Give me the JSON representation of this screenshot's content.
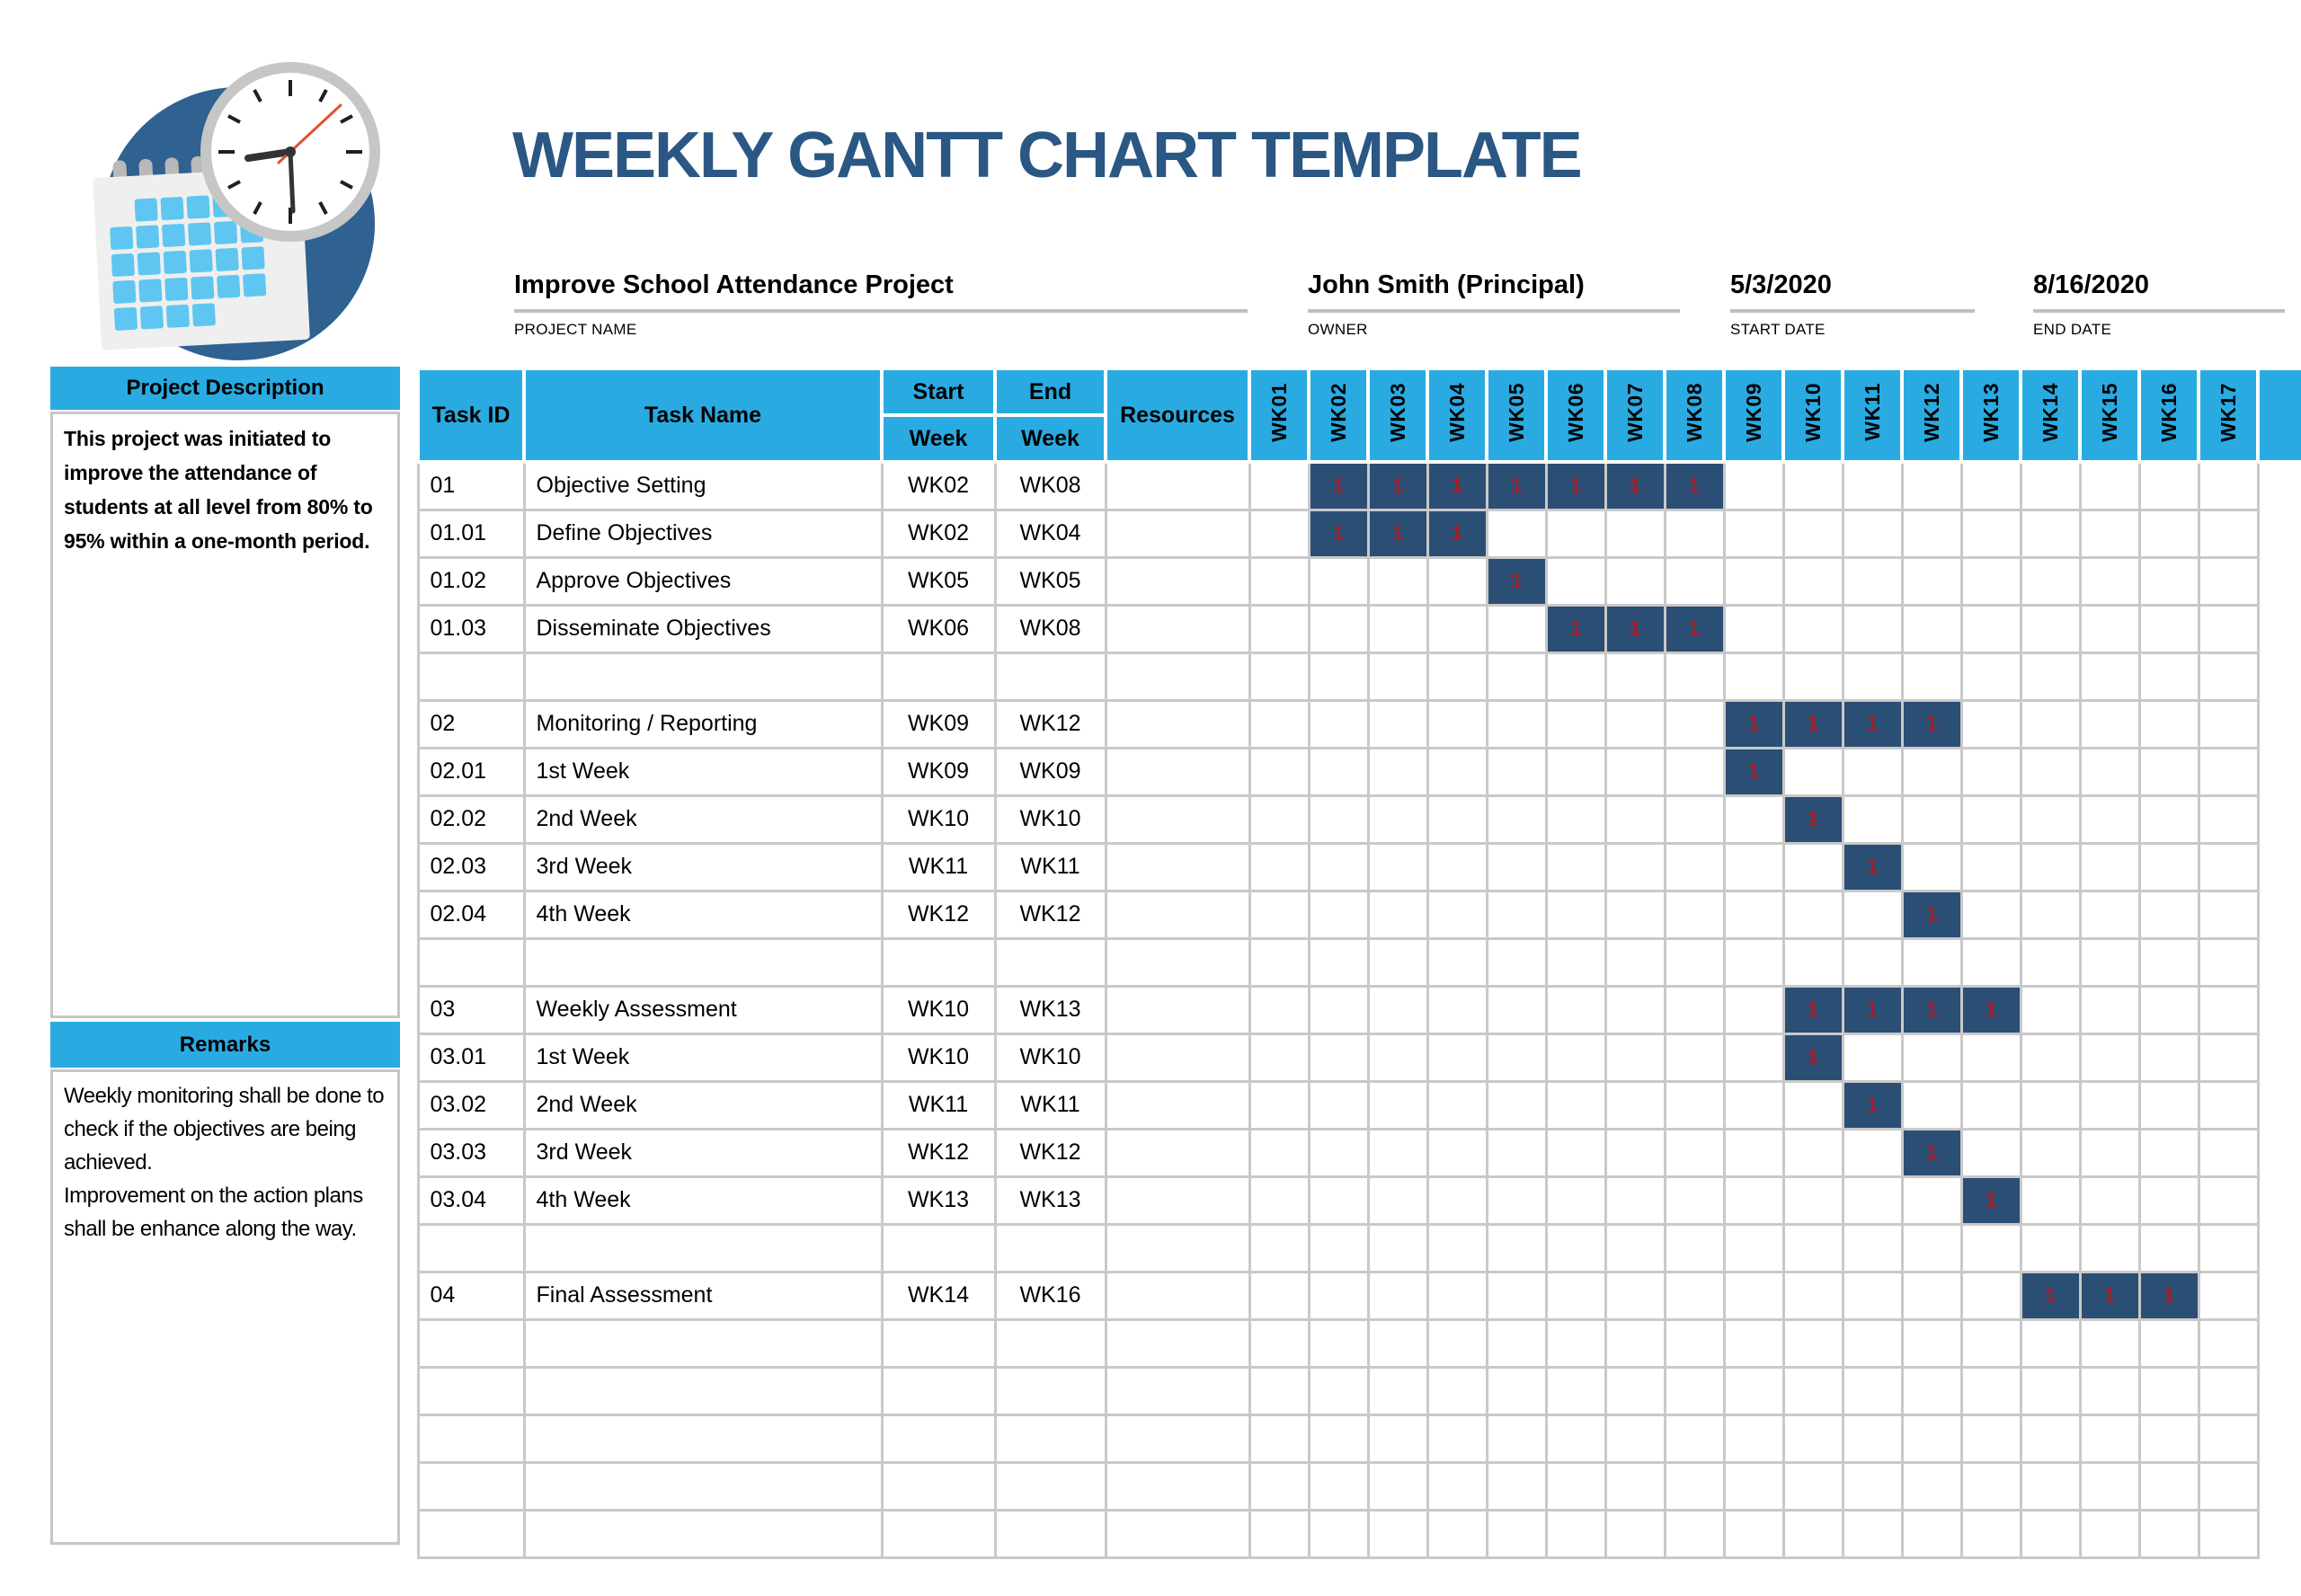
{
  "page": {
    "title": "WEEKLY GANTT CHART TEMPLATE"
  },
  "logo": {
    "name": "calendar-clock-logo"
  },
  "project_info": {
    "name": {
      "value": "Improve School Attendance Project",
      "label": "PROJECT NAME"
    },
    "owner": {
      "value": "John Smith (Principal)",
      "label": "OWNER"
    },
    "start_date": {
      "value": "5/3/2020",
      "label": "START DATE"
    },
    "end_date": {
      "value": "8/16/2020",
      "label": "END DATE"
    }
  },
  "sidebar": {
    "description": {
      "header": "Project Description",
      "body": "This project was initiated to improve the attendance of students at all level from 80% to 95% within a one-month period."
    },
    "remarks": {
      "header": "Remarks",
      "body_lines": [
        "Weekly monitoring shall be done to check if the objectives are being achieved.",
        "Improvement on the action plans shall be enhance along the way."
      ]
    }
  },
  "colors": {
    "cyan": "#29ABE2",
    "navy": "#2B4E74",
    "bar_red": "#A21D28",
    "title_blue": "#2A5783",
    "grid": "#C9C9C9",
    "underline": "#BFBFBF",
    "logo_blue": "#2F6191",
    "cal_sq": "#5EC6F0"
  },
  "chart_data": {
    "type": "gantt",
    "columns": {
      "task_id": "Task ID",
      "task_name": "Task Name",
      "start_top": "Start",
      "start_bottom": "Week",
      "end_top": "End",
      "end_bottom": "Week",
      "resources": "Resources"
    },
    "weeks": [
      "WK01",
      "WK02",
      "WK03",
      "WK04",
      "WK05",
      "WK06",
      "WK07",
      "WK08",
      "WK09",
      "WK10",
      "WK11",
      "WK12",
      "WK13",
      "WK14",
      "WK15",
      "WK16",
      "WK17"
    ],
    "bar_marker": "1",
    "tasks": [
      {
        "id": "01",
        "name": "Objective Setting",
        "start": "WK02",
        "end": "WK08",
        "bar": [
          2,
          8
        ]
      },
      {
        "id": "01.01",
        "name": "Define Objectives",
        "start": "WK02",
        "end": "WK04",
        "bar": [
          2,
          4
        ]
      },
      {
        "id": "01.02",
        "name": "Approve Objectives",
        "start": "WK05",
        "end": "WK05",
        "bar": [
          5,
          5
        ]
      },
      {
        "id": "01.03",
        "name": "Disseminate Objectives",
        "start": "WK06",
        "end": "WK08",
        "bar": [
          6,
          8
        ]
      },
      {
        "blank": true
      },
      {
        "id": "02",
        "name": "Monitoring / Reporting",
        "start": "WK09",
        "end": "WK12",
        "bar": [
          9,
          12
        ]
      },
      {
        "id": "02.01",
        "name": "1st Week",
        "start": "WK09",
        "end": "WK09",
        "bar": [
          9,
          9
        ]
      },
      {
        "id": "02.02",
        "name": "2nd Week",
        "start": "WK10",
        "end": "WK10",
        "bar": [
          10,
          10
        ]
      },
      {
        "id": "02.03",
        "name": "3rd Week",
        "start": "WK11",
        "end": "WK11",
        "bar": [
          11,
          11
        ]
      },
      {
        "id": "02.04",
        "name": "4th Week",
        "start": "WK12",
        "end": "WK12",
        "bar": [
          12,
          12
        ]
      },
      {
        "blank": true
      },
      {
        "id": "03",
        "name": "Weekly Assessment",
        "start": "WK10",
        "end": "WK13",
        "bar": [
          10,
          13
        ]
      },
      {
        "id": "03.01",
        "name": "1st Week",
        "start": "WK10",
        "end": "WK10",
        "bar": [
          10,
          10
        ]
      },
      {
        "id": "03.02",
        "name": "2nd Week",
        "start": "WK11",
        "end": "WK11",
        "bar": [
          11,
          11
        ]
      },
      {
        "id": "03.03",
        "name": "3rd Week",
        "start": "WK12",
        "end": "WK12",
        "bar": [
          12,
          12
        ]
      },
      {
        "id": "03.04",
        "name": "4th Week",
        "start": "WK13",
        "end": "WK13",
        "bar": [
          13,
          13
        ]
      },
      {
        "blank": true
      },
      {
        "id": "04",
        "name": "Final Assessment",
        "start": "WK14",
        "end": "WK16",
        "bar": [
          14,
          16
        ]
      },
      {
        "blank": true
      },
      {
        "blank": true
      },
      {
        "blank": true
      },
      {
        "blank": true
      },
      {
        "blank": true
      }
    ]
  }
}
